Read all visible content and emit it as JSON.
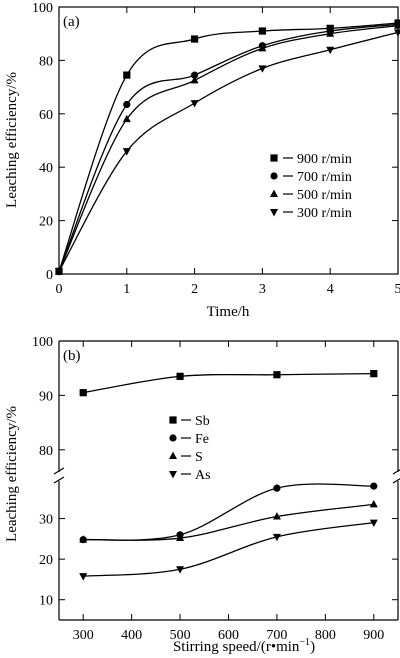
{
  "chart_data": [
    {
      "type": "scatter",
      "panel_label": "(a)",
      "xlabel": "Time/h",
      "ylabel": "Leaching efficiency/%",
      "xlim": [
        0,
        5
      ],
      "ylim": [
        0,
        100
      ],
      "x_ticks": [
        0,
        1,
        2,
        3,
        4,
        5
      ],
      "y_ticks": [
        0,
        20,
        40,
        60,
        80,
        100
      ],
      "legend_position": "center-right",
      "series": [
        {
          "name": "900 r/min",
          "marker": "square",
          "x": [
            0,
            1,
            2,
            3,
            4,
            5
          ],
          "values": [
            1,
            74.5,
            88,
            91,
            92,
            94
          ]
        },
        {
          "name": "700 r/min",
          "marker": "circle",
          "x": [
            0,
            1,
            2,
            3,
            4,
            5
          ],
          "values": [
            1,
            63.5,
            74.5,
            85.5,
            91,
            93.5
          ]
        },
        {
          "name": "500 r/min",
          "marker": "triangle-up",
          "x": [
            0,
            1,
            2,
            3,
            4,
            5
          ],
          "values": [
            1,
            58,
            72.5,
            84.5,
            90,
            93
          ]
        },
        {
          "name": "300 r/min",
          "marker": "triangle-down",
          "x": [
            0,
            1,
            2,
            3,
            4,
            5
          ],
          "values": [
            1,
            46,
            64,
            77,
            84,
            90.5
          ]
        }
      ]
    },
    {
      "type": "scatter",
      "panel_label": "(b)",
      "xlabel": "Stirring speed/(r•min",
      "xlabel_sup": "−1",
      "xlabel_end": ")",
      "ylabel": "Leaching efficiency/%",
      "xlim": [
        250,
        950
      ],
      "ylim_upper": [
        75,
        100
      ],
      "ylim_lower": [
        5,
        40
      ],
      "axis_break": true,
      "x_ticks": [
        300,
        400,
        500,
        600,
        700,
        800,
        900
      ],
      "y_ticks_upper": [
        80,
        90,
        100
      ],
      "y_ticks_lower": [
        10,
        20,
        30
      ],
      "legend_position": "center",
      "series": [
        {
          "name": "Sb",
          "marker": "square",
          "x": [
            300,
            500,
            700,
            900
          ],
          "values": [
            90.5,
            93.5,
            93.8,
            94
          ]
        },
        {
          "name": "Fe",
          "marker": "circle",
          "x": [
            300,
            500,
            700,
            900
          ],
          "values": [
            24.8,
            26,
            37.5,
            38
          ]
        },
        {
          "name": "S",
          "marker": "triangle-up",
          "x": [
            300,
            500,
            700,
            900
          ],
          "values": [
            24.8,
            25.2,
            30.5,
            33.5
          ]
        },
        {
          "name": "As",
          "marker": "triangle-down",
          "x": [
            300,
            500,
            700,
            900
          ],
          "values": [
            15.8,
            17.5,
            25.5,
            29
          ]
        }
      ]
    }
  ]
}
